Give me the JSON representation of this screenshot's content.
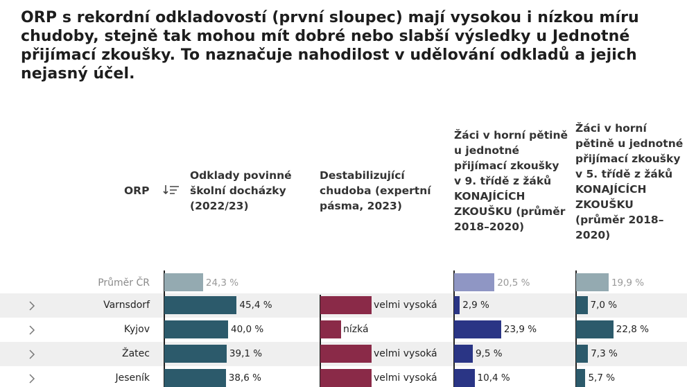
{
  "title": "ORP s rekordní odkladovostí (první sloupec) mají vysokou i nízkou míru chudoby, stejně tak mohou mít dobré nebo slabší výsledky u Jednotné přijímací zkoušky. To naznačuje nahodilost v udělování odkladů a jejich nejasný účel.",
  "headers": {
    "orp": "ORP",
    "col1": "Odklady povinné školní docházky (2022/23)",
    "col2": "Destabilizující chudoba (expertní pásma, 2023)",
    "col3": "Žáci v horní pětině u jednotné přijímací zkoušky v 9. třídě z žáků KONAJÍCÍCH ZKOUŠKU (průměr 2018–2020)",
    "col4": "Žáci v horní pětině u jednotné přijímací zkoušky v 5. třídě z žáků KONAJÍCÍCH ZKOUŠKU (průměr 2018–2020)"
  },
  "colors": {
    "avg_odklady": "#94aab1",
    "avg_9": "#8f96c4",
    "avg_5": "#94aab1",
    "odklady": "#2c5a6b",
    "chudoba": "#8a2a48",
    "zk9": "#2a3585",
    "zk5": "#2c5a6b"
  },
  "chart_data": {
    "type": "table",
    "columns": [
      "ORP",
      "Odklady povinné školní docházky (2022/23)",
      "Destabilizující chudoba (expertní pásma, 2023)",
      "Žáci v horní pětině 9. třída",
      "Žáci v horní pětině 5. třída"
    ],
    "average": {
      "orp": "Průměr ČR",
      "odklady": 24.3,
      "odklady_label": "24,3 %",
      "zk9": 20.5,
      "zk9_label": "20,5 %",
      "zk5": 19.9,
      "zk5_label": "19,9 %"
    },
    "rows": [
      {
        "orp": "Varnsdorf",
        "odklady": 45.4,
        "odklady_label": "45,4 %",
        "chudoba": "velmi vysoká",
        "zk9": 2.9,
        "zk9_label": "2,9 %",
        "zk5": 7.0,
        "zk5_label": "7,0 %"
      },
      {
        "orp": "Kyjov",
        "odklady": 40.0,
        "odklady_label": "40,0 %",
        "chudoba": "nízká",
        "zk9": 23.9,
        "zk9_label": "23,9 %",
        "zk5": 22.8,
        "zk5_label": "22,8 %"
      },
      {
        "orp": "Žatec",
        "odklady": 39.1,
        "odklady_label": "39,1 %",
        "chudoba": "velmi vysoká",
        "zk9": 9.5,
        "zk9_label": "9,5 %",
        "zk5": 7.3,
        "zk5_label": "7,3 %"
      },
      {
        "orp": "Jeseník",
        "odklady": 38.6,
        "odklady_label": "38,6 %",
        "chudoba": "velmi vysoká",
        "zk9": 10.4,
        "zk9_label": "10,4 %",
        "zk5": 5.7,
        "zk5_label": "5,7 %"
      }
    ],
    "chudoba_levels": {
      "nízká": 1,
      "velmi vysoká": 4
    }
  }
}
